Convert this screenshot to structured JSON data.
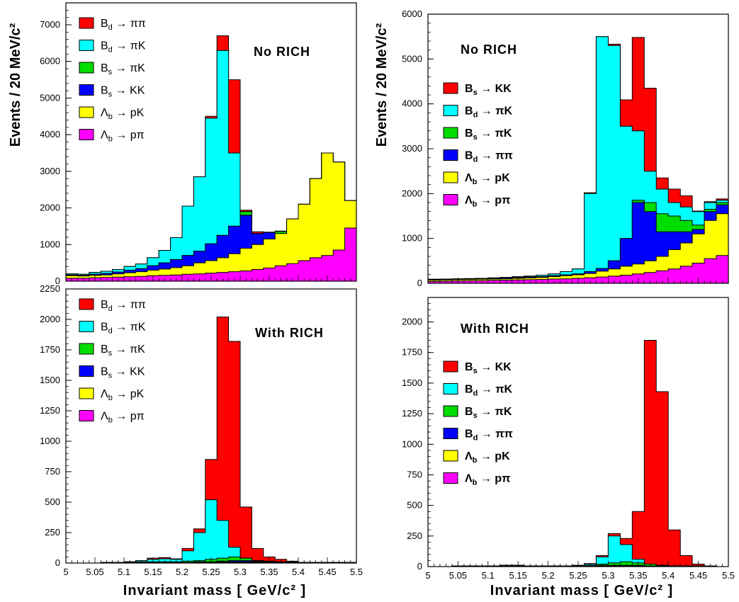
{
  "colors": {
    "bd_pipi": "#ff0000",
    "bd_pik": "#00ffff",
    "bs_pik": "#00dd00",
    "bs_kk": "#0000ff",
    "lb_pk": "#ffff00",
    "lb_ppi": "#ff00ff"
  },
  "chart_data": [
    {
      "type": "area",
      "panel": "top-left",
      "annotation": "No RICH",
      "xlabel": "",
      "ylabel": "Events  /  20 MeV/c²",
      "xlim": [
        5.0,
        5.5
      ],
      "ylim": [
        0,
        7600
      ],
      "yticks": [
        "0",
        "1000",
        "2000",
        "3000",
        "4000",
        "5000",
        "6000",
        "7000"
      ],
      "ytick_values": [
        0,
        1000,
        2000,
        3000,
        4000,
        5000,
        6000,
        7000
      ],
      "show_xticks": false,
      "bin_edges": [
        5.0,
        5.02,
        5.04,
        5.06,
        5.08,
        5.1,
        5.12,
        5.14,
        5.16,
        5.18,
        5.2,
        5.22,
        5.24,
        5.26,
        5.28,
        5.3,
        5.32,
        5.34,
        5.36,
        5.38,
        5.4,
        5.42,
        5.44,
        5.46,
        5.48,
        5.5
      ],
      "legend": [
        {
          "label": "B d → ππ",
          "color": "bd_pipi"
        },
        {
          "label": "B d → πK",
          "color": "bd_pik"
        },
        {
          "label": "B s → πK",
          "color": "bs_pik"
        },
        {
          "label": "B s → KK",
          "color": "bs_kk"
        },
        {
          "label": "Λb → pK",
          "color": "lb_pk"
        },
        {
          "label": "Λb → pπ",
          "color": "lb_ppi"
        }
      ],
      "legend_style": "normal",
      "series": [
        {
          "name": "B d → ππ",
          "color": "bd_pipi",
          "values": [
            200,
            190,
            240,
            270,
            320,
            400,
            470,
            640,
            840,
            1190,
            2050,
            2850,
            4500,
            6700,
            5500,
            1940,
            1350,
            1340,
            1370,
            1700,
            2100,
            2800,
            3500,
            3250,
            2200
          ]
        },
        {
          "name": "B d → πK",
          "color": "bd_pik",
          "values": [
            200,
            190,
            240,
            270,
            320,
            400,
            470,
            640,
            840,
            1190,
            2050,
            2850,
            4450,
            6300,
            3500,
            1900,
            1300,
            1330,
            1360,
            1700,
            2100,
            2800,
            3500,
            3250,
            2200
          ]
        },
        {
          "name": "B s → πK",
          "color": "bs_pik",
          "values": [
            170,
            160,
            190,
            210,
            250,
            300,
            340,
            420,
            500,
            590,
            700,
            820,
            1020,
            1250,
            1500,
            1900,
            1300,
            1330,
            1360,
            1700,
            2100,
            2800,
            3500,
            3250,
            2200
          ]
        },
        {
          "name": "B s → KK",
          "color": "bs_kk",
          "values": [
            170,
            160,
            190,
            210,
            250,
            300,
            340,
            420,
            500,
            590,
            700,
            820,
            1020,
            1250,
            1500,
            1800,
            1300,
            1330,
            1300,
            1700,
            2100,
            2800,
            3500,
            3250,
            2200
          ]
        },
        {
          "name": "Λb → pK",
          "color": "lb_pk",
          "values": [
            150,
            140,
            160,
            170,
            200,
            230,
            260,
            300,
            330,
            370,
            420,
            500,
            560,
            640,
            750,
            900,
            1000,
            1150,
            1300,
            1700,
            2100,
            2800,
            3500,
            3250,
            2200
          ]
        },
        {
          "name": "Λb → pπ",
          "color": "lb_ppi",
          "values": [
            80,
            80,
            90,
            100,
            110,
            120,
            130,
            150,
            160,
            170,
            190,
            200,
            220,
            240,
            260,
            280,
            320,
            360,
            420,
            480,
            560,
            640,
            700,
            850,
            1450
          ]
        }
      ]
    },
    {
      "type": "area",
      "panel": "top-right",
      "annotation": "No RICH",
      "xlabel": "",
      "ylabel": "Events  /  20 MeV/c²",
      "xlim": [
        5.0,
        5.5
      ],
      "ylim": [
        0,
        6000
      ],
      "yticks": [
        "0",
        "1000",
        "2000",
        "3000",
        "4000",
        "5000",
        "6000"
      ],
      "ytick_values": [
        0,
        1000,
        2000,
        3000,
        4000,
        5000,
        6000
      ],
      "show_xticks": false,
      "bin_edges": [
        5.0,
        5.02,
        5.04,
        5.06,
        5.08,
        5.1,
        5.12,
        5.14,
        5.16,
        5.18,
        5.2,
        5.22,
        5.24,
        5.26,
        5.28,
        5.3,
        5.32,
        5.34,
        5.36,
        5.38,
        5.4,
        5.42,
        5.44,
        5.46,
        5.48,
        5.5
      ],
      "legend": [
        {
          "label": "B s → KK",
          "color": "bd_pipi"
        },
        {
          "label": "B d → πK",
          "color": "bd_pik"
        },
        {
          "label": "B s → πK",
          "color": "bs_pik"
        },
        {
          "label": "B d → ππ",
          "color": "bs_kk"
        },
        {
          "label": "Λb → pK",
          "color": "lb_pk"
        },
        {
          "label": "Λb → pπ",
          "color": "lb_ppi"
        }
      ],
      "legend_style": "bold",
      "series": [
        {
          "name": "B s → KK",
          "color": "bd_pipi",
          "values": [
            90,
            95,
            100,
            105,
            110,
            120,
            130,
            145,
            160,
            180,
            210,
            260,
            320,
            2020,
            5500,
            5330,
            4090,
            5480,
            4350,
            2350,
            2100,
            1950,
            1610,
            1820,
            1880
          ]
        },
        {
          "name": "B d → πK",
          "color": "bd_pik",
          "values": [
            90,
            95,
            100,
            105,
            110,
            120,
            130,
            145,
            160,
            180,
            210,
            260,
            320,
            2000,
            5500,
            5300,
            3500,
            3400,
            2500,
            2100,
            1800,
            1700,
            1600,
            1800,
            1850
          ]
        },
        {
          "name": "B s → πK",
          "color": "bs_pik",
          "values": [
            80,
            85,
            90,
            95,
            100,
            110,
            120,
            130,
            140,
            150,
            170,
            190,
            210,
            260,
            330,
            500,
            1000,
            1850,
            1800,
            1550,
            1500,
            1400,
            1300,
            1650,
            1800
          ]
        },
        {
          "name": "B d → ππ",
          "color": "bs_kk",
          "values": [
            80,
            85,
            90,
            95,
            100,
            110,
            120,
            130,
            140,
            150,
            170,
            190,
            210,
            260,
            330,
            500,
            1000,
            1800,
            1600,
            1150,
            1150,
            1150,
            1200,
            1600,
            1750
          ]
        },
        {
          "name": "Λb → pK",
          "color": "lb_pk",
          "values": [
            70,
            75,
            80,
            85,
            90,
            95,
            100,
            110,
            120,
            130,
            150,
            170,
            190,
            220,
            270,
            320,
            380,
            430,
            500,
            600,
            750,
            900,
            1100,
            1400,
            1550
          ]
        },
        {
          "name": "Λb → pπ",
          "color": "lb_ppi",
          "values": [
            40,
            45,
            50,
            55,
            60,
            65,
            70,
            75,
            80,
            85,
            95,
            100,
            110,
            125,
            140,
            160,
            180,
            210,
            240,
            280,
            320,
            380,
            450,
            550,
            620
          ]
        }
      ]
    },
    {
      "type": "area",
      "panel": "bottom-left",
      "annotation": "With RICH",
      "xlabel": "Invariant mass  [ GeV/c² ]",
      "ylabel": "",
      "xlim": [
        5.0,
        5.5
      ],
      "ylim": [
        0,
        2250
      ],
      "yticks": [
        "0",
        "250",
        "500",
        "750",
        "1000",
        "1250",
        "1500",
        "1750",
        "2000",
        "2250"
      ],
      "ytick_values": [
        0,
        250,
        500,
        750,
        1000,
        1250,
        1500,
        1750,
        2000,
        2250
      ],
      "show_xticks": true,
      "xticks": [
        "5",
        "5.05",
        "5.1",
        "5.15",
        "5.2",
        "5.25",
        "5.3",
        "5.35",
        "5.4",
        "5.45",
        "5.5"
      ],
      "xtick_values": [
        5.0,
        5.05,
        5.1,
        5.15,
        5.2,
        5.25,
        5.3,
        5.35,
        5.4,
        5.45,
        5.5
      ],
      "bin_edges": [
        5.0,
        5.02,
        5.04,
        5.06,
        5.08,
        5.1,
        5.12,
        5.14,
        5.16,
        5.18,
        5.2,
        5.22,
        5.24,
        5.26,
        5.28,
        5.3,
        5.32,
        5.34,
        5.36,
        5.38,
        5.4,
        5.42,
        5.44,
        5.46,
        5.48,
        5.5
      ],
      "legend": [
        {
          "label": "B d → ππ",
          "color": "bd_pipi"
        },
        {
          "label": "B d → πK",
          "color": "bd_pik"
        },
        {
          "label": "B s → πK",
          "color": "bs_pik"
        },
        {
          "label": "B s → KK",
          "color": "bs_kk"
        },
        {
          "label": "Λb → pK",
          "color": "lb_pk"
        },
        {
          "label": "Λb → pπ",
          "color": "lb_ppi"
        }
      ],
      "legend_style": "normal",
      "series": [
        {
          "name": "B d → ππ",
          "color": "bd_pipi",
          "values": [
            0,
            0,
            0,
            5,
            5,
            10,
            20,
            40,
            45,
            35,
            120,
            280,
            850,
            2020,
            1820,
            460,
            120,
            50,
            30,
            15,
            5,
            5,
            5,
            5,
            5
          ]
        },
        {
          "name": "B d → πK",
          "color": "bd_pik",
          "values": [
            0,
            0,
            0,
            5,
            5,
            10,
            20,
            30,
            35,
            30,
            100,
            250,
            520,
            350,
            130,
            40,
            20,
            15,
            10,
            5,
            5,
            5,
            5,
            5,
            5
          ]
        },
        {
          "name": "B s → πK",
          "color": "bs_pik",
          "values": [
            0,
            0,
            0,
            5,
            5,
            5,
            10,
            10,
            10,
            10,
            15,
            20,
            30,
            40,
            50,
            40,
            20,
            15,
            10,
            5,
            5,
            5,
            5,
            5,
            5
          ]
        },
        {
          "name": "B s → KK",
          "color": "bs_kk",
          "values": [
            0,
            0,
            0,
            0,
            0,
            5,
            5,
            5,
            5,
            5,
            5,
            10,
            10,
            15,
            20,
            20,
            15,
            10,
            5,
            5,
            5,
            0,
            0,
            0,
            0
          ]
        },
        {
          "name": "Λb → pK",
          "color": "lb_pk",
          "values": [
            0,
            0,
            0,
            0,
            0,
            0,
            0,
            0,
            0,
            5,
            5,
            5,
            5,
            10,
            10,
            10,
            10,
            10,
            10,
            10,
            5,
            5,
            5,
            5,
            5
          ]
        },
        {
          "name": "Λb → pπ",
          "color": "lb_ppi",
          "values": [
            0,
            0,
            0,
            0,
            0,
            0,
            0,
            0,
            0,
            0,
            0,
            0,
            0,
            5,
            5,
            5,
            5,
            5,
            5,
            5,
            5,
            5,
            5,
            5,
            5
          ]
        }
      ]
    },
    {
      "type": "area",
      "panel": "bottom-right",
      "annotation": "With RICH",
      "xlabel": "Invariant mass  [ GeV/c² ]",
      "ylabel": "",
      "xlim": [
        5.0,
        5.5
      ],
      "ylim": [
        0,
        2200
      ],
      "yticks": [
        "0",
        "250",
        "500",
        "750",
        "1000",
        "1250",
        "1500",
        "1750",
        "2000"
      ],
      "ytick_values": [
        0,
        250,
        500,
        750,
        1000,
        1250,
        1500,
        1750,
        2000
      ],
      "show_xticks": true,
      "xticks": [
        "5",
        "5.05",
        "5.1",
        "5.15",
        "5.2",
        "5.25",
        "5.3",
        "5.35",
        "5.4",
        "5.45",
        "5.5"
      ],
      "xtick_values": [
        5.0,
        5.05,
        5.1,
        5.15,
        5.2,
        5.25,
        5.3,
        5.35,
        5.4,
        5.45,
        5.5
      ],
      "bin_edges": [
        5.0,
        5.02,
        5.04,
        5.06,
        5.08,
        5.1,
        5.12,
        5.14,
        5.16,
        5.18,
        5.2,
        5.22,
        5.24,
        5.26,
        5.28,
        5.3,
        5.32,
        5.34,
        5.36,
        5.38,
        5.4,
        5.42,
        5.44,
        5.46,
        5.48,
        5.5
      ],
      "legend": [
        {
          "label": "B s → KK",
          "color": "bd_pipi"
        },
        {
          "label": "B d → πK",
          "color": "bd_pik"
        },
        {
          "label": "B s → πK",
          "color": "bs_pik"
        },
        {
          "label": "B d → ππ",
          "color": "bs_kk"
        },
        {
          "label": "Λb → pK",
          "color": "lb_pk"
        },
        {
          "label": "Λb → pπ",
          "color": "lb_ppi"
        }
      ],
      "legend_style": "bold",
      "series": [
        {
          "name": "B s → KK",
          "color": "bd_pipi",
          "values": [
            0,
            0,
            5,
            5,
            5,
            5,
            10,
            10,
            5,
            5,
            5,
            5,
            10,
            25,
            90,
            270,
            230,
            450,
            1850,
            1430,
            300,
            90,
            20,
            5,
            0
          ]
        },
        {
          "name": "B d → πK",
          "color": "bd_pik",
          "values": [
            0,
            0,
            5,
            5,
            5,
            5,
            10,
            10,
            5,
            5,
            5,
            5,
            10,
            20,
            80,
            250,
            180,
            60,
            20,
            10,
            5,
            5,
            5,
            0,
            0
          ]
        },
        {
          "name": "B s → πK",
          "color": "bs_pik",
          "values": [
            0,
            0,
            5,
            5,
            5,
            5,
            10,
            10,
            5,
            5,
            5,
            5,
            5,
            10,
            20,
            30,
            40,
            30,
            20,
            10,
            5,
            5,
            5,
            0,
            0
          ]
        },
        {
          "name": "B d → ππ",
          "color": "bs_kk",
          "values": [
            0,
            0,
            0,
            0,
            0,
            0,
            5,
            5,
            5,
            5,
            5,
            5,
            5,
            5,
            10,
            10,
            10,
            10,
            5,
            5,
            5,
            0,
            0,
            0,
            0
          ]
        },
        {
          "name": "Λb → pK",
          "color": "lb_pk",
          "values": [
            0,
            0,
            0,
            0,
            0,
            0,
            0,
            0,
            0,
            5,
            5,
            5,
            5,
            5,
            5,
            5,
            5,
            5,
            5,
            5,
            5,
            5,
            5,
            5,
            0
          ]
        },
        {
          "name": "Λb → pπ",
          "color": "lb_ppi",
          "values": [
            0,
            0,
            0,
            0,
            0,
            0,
            0,
            0,
            0,
            0,
            0,
            0,
            0,
            0,
            0,
            5,
            5,
            5,
            5,
            5,
            5,
            5,
            5,
            0,
            0
          ]
        }
      ]
    }
  ]
}
